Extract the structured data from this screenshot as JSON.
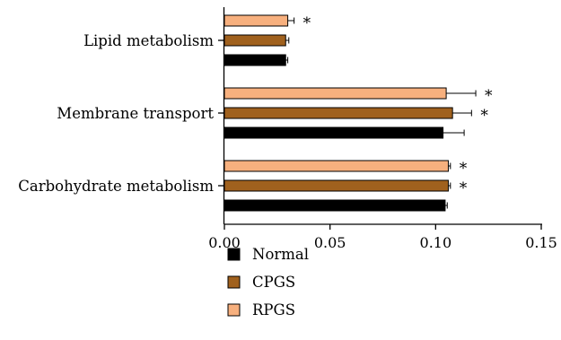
{
  "chart_data": {
    "type": "bar",
    "orientation": "horizontal",
    "title": "",
    "xlabel": "",
    "ylabel": "",
    "xlim": [
      0,
      0.15
    ],
    "x_ticks": [
      "0.00",
      "0.05",
      "0.10",
      "0.15"
    ],
    "categories": [
      "Lipid metabolism",
      "Membrane transport",
      "Carbohydrate metabolism"
    ],
    "series": [
      {
        "name": "Normal",
        "color": "#000000",
        "values": [
          0.029,
          0.1035,
          0.1045
        ],
        "errors": [
          0.001,
          0.01,
          0.001
        ],
        "significant": [
          false,
          false,
          false
        ]
      },
      {
        "name": "CPGS",
        "color": "#a0611e",
        "values": [
          0.029,
          0.108,
          0.106
        ],
        "errors": [
          0.0015,
          0.009,
          0.001
        ],
        "significant": [
          false,
          true,
          true
        ]
      },
      {
        "name": "RPGS",
        "color": "#f7b07e",
        "values": [
          0.03,
          0.105,
          0.106
        ],
        "errors": [
          0.003,
          0.014,
          0.001
        ],
        "significant": [
          true,
          true,
          true
        ]
      }
    ],
    "significance_marker": "*",
    "grid": false,
    "legend_position": "bottom-left"
  }
}
